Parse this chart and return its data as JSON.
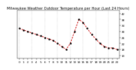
{
  "title": "Milwaukee Weather Outdoor Temperature per Hour (Last 24 Hours)",
  "hours": [
    0,
    1,
    2,
    3,
    4,
    5,
    6,
    7,
    8,
    9,
    10,
    11,
    12,
    13,
    14,
    15,
    16,
    17,
    18,
    19,
    20,
    21,
    22,
    23
  ],
  "temps": [
    32,
    31,
    30,
    29,
    28,
    27,
    26,
    25,
    24,
    22,
    20,
    18,
    22,
    30,
    38,
    36,
    32,
    28,
    25,
    22,
    20,
    19,
    19,
    18
  ],
  "line_color": "#cc0000",
  "marker_color": "#000000",
  "bg_color": "#ffffff",
  "grid_color": "#999999",
  "title_color": "#000000",
  "ylim_min": 12,
  "ylim_max": 44,
  "ytick_positions": [
    14,
    18,
    22,
    26,
    30,
    34,
    38,
    42
  ],
  "ytick_labels": [
    "14",
    "18",
    "22",
    "26",
    "30",
    "34",
    "38",
    "42"
  ],
  "xtick_positions": [
    0,
    1,
    2,
    3,
    4,
    5,
    6,
    7,
    8,
    9,
    10,
    11,
    12,
    13,
    14,
    15,
    16,
    17,
    18,
    19,
    20,
    21,
    22,
    23
  ],
  "vgrid_positions": [
    0,
    3,
    6,
    9,
    12,
    15,
    18,
    21
  ],
  "title_fontsize": 3.8,
  "tick_fontsize": 3.0,
  "line_width": 0.7,
  "marker_size": 1.8
}
